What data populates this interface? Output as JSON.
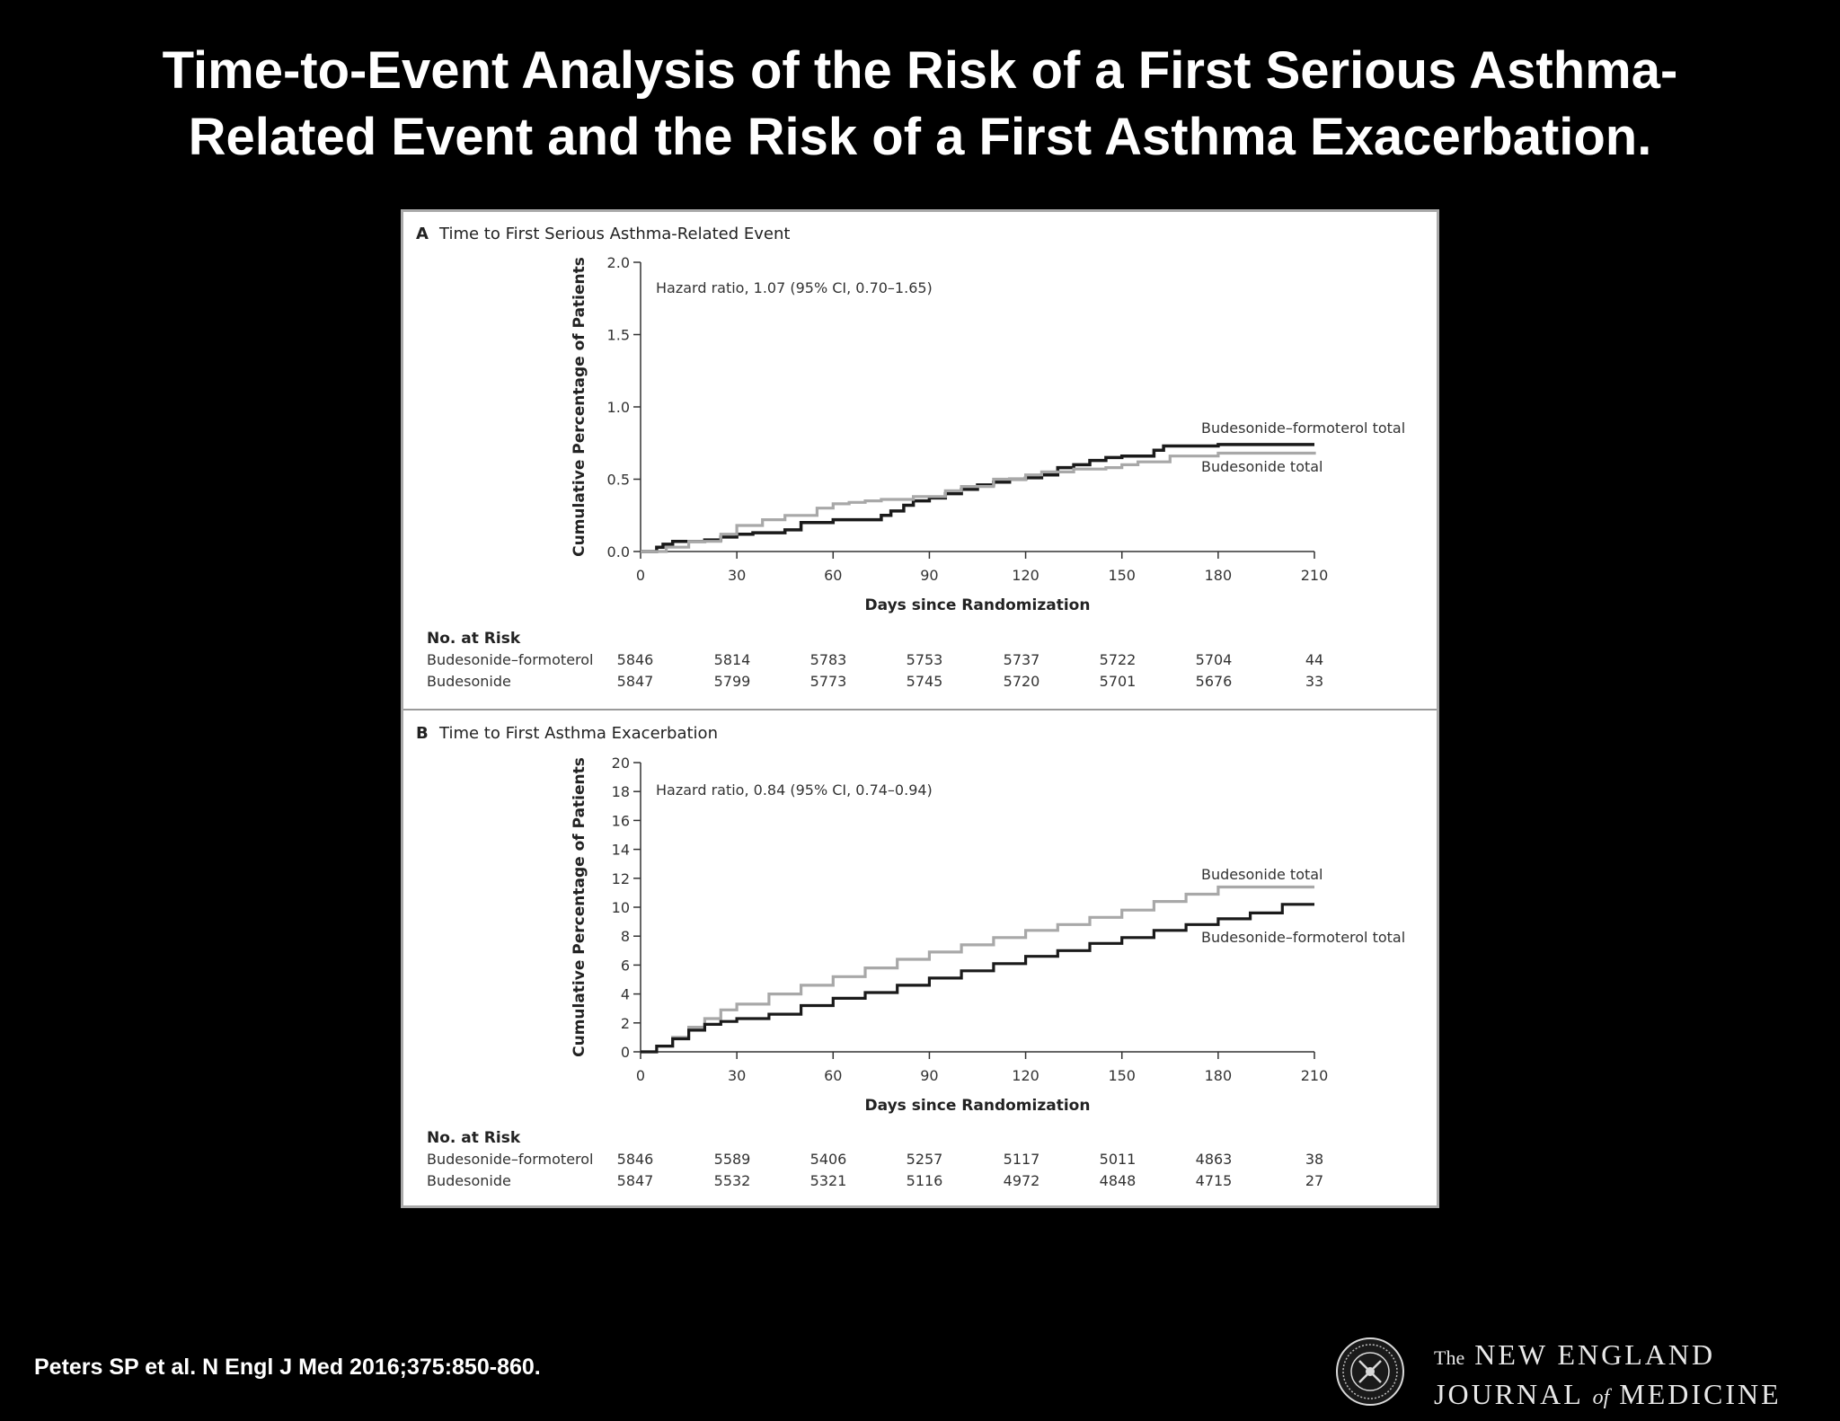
{
  "slide": {
    "title_line1": "Time-to-Event Analysis of the Risk of a First Serious Asthma-",
    "title_line2": "Related Event and the Risk of a First Asthma Exacerbation.",
    "citation": "Peters SP et al. N Engl J Med 2016;375:850-860."
  },
  "logo": {
    "prefix": "The",
    "line1": "NEW ENGLAND",
    "line2_a": "JOURNAL",
    "line2_of": "of",
    "line2_b": "MEDICINE"
  },
  "colors": {
    "background": "#000000",
    "budesonide_formoterol": "#1a1a1a",
    "budesonide": "#a8a8a8",
    "panel": "#ffffff"
  },
  "chart_data": [
    {
      "type": "line",
      "panel_letter": "A",
      "title": "Time to First Serious Asthma-Related Event",
      "xlabel": "Days since Randomization",
      "ylabel": "Cumulative Percentage of Patients",
      "xlim": [
        0,
        210
      ],
      "ylim": [
        0,
        2.0
      ],
      "x_ticks": [
        0,
        30,
        60,
        90,
        120,
        150,
        180,
        210
      ],
      "y_ticks": [
        "0.0",
        "0.5",
        "1.0",
        "1.5",
        "2.0"
      ],
      "annotation": "Hazard ratio, 1.07 (95% CI, 0.70–1.65)",
      "series": [
        {
          "name": "Budesonide–formoterol total",
          "color": "#1a1a1a",
          "x": [
            0,
            5,
            7,
            10,
            20,
            25,
            30,
            35,
            45,
            50,
            60,
            75,
            78,
            82,
            85,
            90,
            95,
            100,
            105,
            110,
            115,
            120,
            125,
            130,
            135,
            140,
            145,
            150,
            160,
            163,
            180,
            210
          ],
          "y": [
            0,
            0.03,
            0.05,
            0.07,
            0.08,
            0.1,
            0.12,
            0.13,
            0.15,
            0.2,
            0.22,
            0.25,
            0.28,
            0.32,
            0.35,
            0.37,
            0.4,
            0.43,
            0.46,
            0.48,
            0.5,
            0.51,
            0.53,
            0.58,
            0.6,
            0.63,
            0.65,
            0.66,
            0.7,
            0.73,
            0.74,
            0.74
          ]
        },
        {
          "name": "Budesonide total",
          "color": "#a8a8a8",
          "x": [
            0,
            8,
            15,
            25,
            30,
            38,
            45,
            55,
            60,
            65,
            70,
            75,
            85,
            95,
            100,
            110,
            120,
            125,
            135,
            145,
            150,
            155,
            165,
            180,
            210
          ],
          "y": [
            0,
            0.03,
            0.07,
            0.12,
            0.18,
            0.22,
            0.25,
            0.3,
            0.33,
            0.34,
            0.35,
            0.36,
            0.38,
            0.42,
            0.45,
            0.5,
            0.53,
            0.55,
            0.57,
            0.58,
            0.6,
            0.62,
            0.66,
            0.68,
            0.69
          ]
        }
      ],
      "risk_table": {
        "header": "No. at Risk",
        "rows": [
          {
            "label": "Budesonide–formoterol",
            "values": [
              "5846",
              "5814",
              "5783",
              "5753",
              "5737",
              "5722",
              "5704",
              "44"
            ]
          },
          {
            "label": "Budesonide",
            "values": [
              "5847",
              "5799",
              "5773",
              "5745",
              "5720",
              "5701",
              "5676",
              "33"
            ]
          }
        ]
      }
    },
    {
      "type": "line",
      "panel_letter": "B",
      "title": "Time to First Asthma Exacerbation",
      "xlabel": "Days since Randomization",
      "ylabel": "Cumulative Percentage of Patients",
      "xlim": [
        0,
        210
      ],
      "ylim": [
        0,
        20
      ],
      "x_ticks": [
        0,
        30,
        60,
        90,
        120,
        150,
        180,
        210
      ],
      "y_ticks": [
        "0",
        "2",
        "4",
        "6",
        "8",
        "10",
        "12",
        "14",
        "16",
        "18",
        "20"
      ],
      "annotation": "Hazard ratio, 0.84 (95% CI, 0.74–0.94)",
      "series": [
        {
          "name": "Budesonide total",
          "color": "#a8a8a8",
          "x": [
            0,
            5,
            10,
            15,
            20,
            25,
            30,
            40,
            50,
            60,
            70,
            80,
            90,
            100,
            110,
            120,
            130,
            140,
            150,
            160,
            170,
            180,
            210
          ],
          "y": [
            0,
            0.4,
            1.0,
            1.7,
            2.3,
            2.9,
            3.3,
            4.0,
            4.6,
            5.2,
            5.8,
            6.4,
            6.9,
            7.4,
            7.9,
            8.4,
            8.8,
            9.3,
            9.8,
            10.4,
            10.9,
            11.4,
            11.4
          ]
        },
        {
          "name": "Budesonide–formoterol total",
          "color": "#1a1a1a",
          "x": [
            0,
            5,
            10,
            15,
            20,
            25,
            30,
            40,
            50,
            60,
            70,
            80,
            90,
            100,
            110,
            120,
            130,
            140,
            150,
            160,
            170,
            180,
            190,
            200,
            210
          ],
          "y": [
            0,
            0.4,
            0.9,
            1.5,
            1.9,
            2.1,
            2.3,
            2.6,
            3.2,
            3.7,
            4.1,
            4.6,
            5.1,
            5.6,
            6.1,
            6.6,
            7.0,
            7.5,
            7.9,
            8.4,
            8.8,
            9.2,
            9.6,
            10.2,
            10.2
          ]
        }
      ],
      "risk_table": {
        "header": "No. at Risk",
        "rows": [
          {
            "label": "Budesonide–formoterol",
            "values": [
              "5846",
              "5589",
              "5406",
              "5257",
              "5117",
              "5011",
              "4863",
              "38"
            ]
          },
          {
            "label": "Budesonide",
            "values": [
              "5847",
              "5532",
              "5321",
              "5116",
              "4972",
              "4848",
              "4715",
              "27"
            ]
          }
        ]
      }
    }
  ]
}
